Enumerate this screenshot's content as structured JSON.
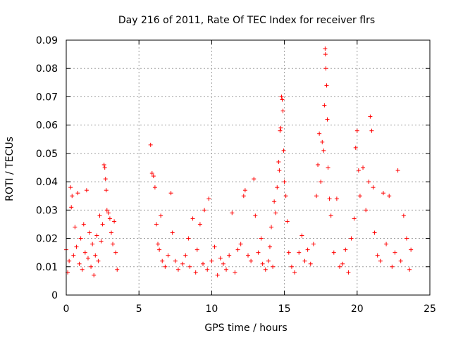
{
  "chart_data": {
    "type": "scatter",
    "title": "Day 216 of 2011, Rate Of TEC Index for receiver flrs",
    "xlabel": "GPS time / hours",
    "ylabel": "ROTI / TECUs",
    "xlim": [
      0,
      25
    ],
    "ylim": [
      0,
      0.09
    ],
    "xticks": [
      0,
      5,
      10,
      15,
      20,
      25
    ],
    "yticks": [
      0,
      0.01,
      0.02,
      0.03,
      0.04,
      0.05,
      0.06,
      0.07,
      0.08,
      0.09
    ],
    "xtick_labels": [
      "0",
      "5",
      "10",
      "15",
      "20",
      "25"
    ],
    "ytick_labels": [
      "0",
      "0.01",
      "0.02",
      "0.03",
      "0.04",
      "0.05",
      "0.06",
      "0.07",
      "0.08",
      "0.09"
    ],
    "grid": true,
    "marker": "plus",
    "color": "#ff0000",
    "series": [
      {
        "name": "ROTI",
        "points": [
          [
            0.0,
            0.016
          ],
          [
            0.1,
            0.008
          ],
          [
            0.2,
            0.012
          ],
          [
            0.3,
            0.038
          ],
          [
            0.35,
            0.031
          ],
          [
            0.4,
            0.035
          ],
          [
            0.5,
            0.014
          ],
          [
            0.6,
            0.024
          ],
          [
            0.7,
            0.017
          ],
          [
            0.8,
            0.036
          ],
          [
            0.9,
            0.011
          ],
          [
            1.0,
            0.02
          ],
          [
            1.1,
            0.009
          ],
          [
            1.2,
            0.025
          ],
          [
            1.3,
            0.015
          ],
          [
            1.4,
            0.037
          ],
          [
            1.5,
            0.013
          ],
          [
            1.6,
            0.022
          ],
          [
            1.7,
            0.01
          ],
          [
            1.8,
            0.018
          ],
          [
            1.9,
            0.007
          ],
          [
            2.0,
            0.014
          ],
          [
            2.1,
            0.021
          ],
          [
            2.2,
            0.012
          ],
          [
            2.3,
            0.028
          ],
          [
            2.4,
            0.019
          ],
          [
            2.5,
            0.025
          ],
          [
            2.6,
            0.046
          ],
          [
            2.65,
            0.045
          ],
          [
            2.7,
            0.041
          ],
          [
            2.75,
            0.037
          ],
          [
            2.8,
            0.03
          ],
          [
            2.9,
            0.029
          ],
          [
            3.0,
            0.027
          ],
          [
            3.1,
            0.022
          ],
          [
            3.2,
            0.018
          ],
          [
            3.3,
            0.026
          ],
          [
            3.4,
            0.015
          ],
          [
            3.5,
            0.009
          ],
          [
            5.8,
            0.053
          ],
          [
            5.9,
            0.043
          ],
          [
            6.0,
            0.042
          ],
          [
            6.1,
            0.038
          ],
          [
            6.2,
            0.025
          ],
          [
            6.3,
            0.018
          ],
          [
            6.4,
            0.016
          ],
          [
            6.5,
            0.028
          ],
          [
            6.6,
            0.012
          ],
          [
            6.8,
            0.01
          ],
          [
            7.0,
            0.014
          ],
          [
            7.2,
            0.036
          ],
          [
            7.3,
            0.022
          ],
          [
            7.5,
            0.012
          ],
          [
            7.7,
            0.009
          ],
          [
            8.0,
            0.011
          ],
          [
            8.2,
            0.014
          ],
          [
            8.4,
            0.02
          ],
          [
            8.5,
            0.01
          ],
          [
            8.7,
            0.027
          ],
          [
            8.9,
            0.008
          ],
          [
            9.0,
            0.016
          ],
          [
            9.2,
            0.025
          ],
          [
            9.4,
            0.011
          ],
          [
            9.5,
            0.03
          ],
          [
            9.7,
            0.009
          ],
          [
            9.8,
            0.034
          ],
          [
            10.0,
            0.012
          ],
          [
            10.2,
            0.017
          ],
          [
            10.4,
            0.007
          ],
          [
            10.6,
            0.013
          ],
          [
            10.8,
            0.011
          ],
          [
            11.0,
            0.009
          ],
          [
            11.2,
            0.014
          ],
          [
            11.4,
            0.029
          ],
          [
            11.6,
            0.008
          ],
          [
            11.8,
            0.016
          ],
          [
            12.0,
            0.018
          ],
          [
            12.2,
            0.035
          ],
          [
            12.3,
            0.037
          ],
          [
            12.5,
            0.014
          ],
          [
            12.7,
            0.012
          ],
          [
            12.9,
            0.041
          ],
          [
            13.0,
            0.028
          ],
          [
            13.2,
            0.015
          ],
          [
            13.4,
            0.02
          ],
          [
            13.5,
            0.011
          ],
          [
            13.7,
            0.009
          ],
          [
            13.9,
            0.012
          ],
          [
            14.0,
            0.017
          ],
          [
            14.1,
            0.024
          ],
          [
            14.2,
            0.01
          ],
          [
            14.3,
            0.033
          ],
          [
            14.4,
            0.029
          ],
          [
            14.5,
            0.038
          ],
          [
            14.6,
            0.047
          ],
          [
            14.65,
            0.044
          ],
          [
            14.7,
            0.058
          ],
          [
            14.75,
            0.059
          ],
          [
            14.8,
            0.07
          ],
          [
            14.85,
            0.069
          ],
          [
            14.9,
            0.065
          ],
          [
            14.95,
            0.051
          ],
          [
            15.0,
            0.04
          ],
          [
            15.1,
            0.035
          ],
          [
            15.2,
            0.026
          ],
          [
            15.3,
            0.015
          ],
          [
            15.5,
            0.01
          ],
          [
            15.7,
            0.008
          ],
          [
            16.0,
            0.015
          ],
          [
            16.2,
            0.021
          ],
          [
            16.4,
            0.012
          ],
          [
            16.6,
            0.016
          ],
          [
            16.8,
            0.011
          ],
          [
            17.0,
            0.018
          ],
          [
            17.2,
            0.035
          ],
          [
            17.3,
            0.046
          ],
          [
            17.4,
            0.057
          ],
          [
            17.5,
            0.04
          ],
          [
            17.6,
            0.054
          ],
          [
            17.7,
            0.051
          ],
          [
            17.75,
            0.067
          ],
          [
            17.8,
            0.087
          ],
          [
            17.82,
            0.085
          ],
          [
            17.85,
            0.08
          ],
          [
            17.9,
            0.074
          ],
          [
            17.95,
            0.062
          ],
          [
            18.0,
            0.045
          ],
          [
            18.1,
            0.034
          ],
          [
            18.2,
            0.028
          ],
          [
            18.4,
            0.015
          ],
          [
            18.6,
            0.034
          ],
          [
            18.8,
            0.01
          ],
          [
            19.0,
            0.011
          ],
          [
            19.2,
            0.016
          ],
          [
            19.4,
            0.008
          ],
          [
            19.6,
            0.02
          ],
          [
            19.8,
            0.027
          ],
          [
            19.9,
            0.052
          ],
          [
            20.0,
            0.058
          ],
          [
            20.1,
            0.044
          ],
          [
            20.2,
            0.035
          ],
          [
            20.4,
            0.045
          ],
          [
            20.6,
            0.03
          ],
          [
            20.8,
            0.04
          ],
          [
            20.9,
            0.063
          ],
          [
            21.0,
            0.058
          ],
          [
            21.1,
            0.038
          ],
          [
            21.2,
            0.022
          ],
          [
            21.4,
            0.014
          ],
          [
            21.6,
            0.012
          ],
          [
            21.8,
            0.036
          ],
          [
            22.0,
            0.018
          ],
          [
            22.2,
            0.035
          ],
          [
            22.4,
            0.01
          ],
          [
            22.6,
            0.015
          ],
          [
            22.8,
            0.044
          ],
          [
            23.0,
            0.012
          ],
          [
            23.2,
            0.028
          ],
          [
            23.4,
            0.02
          ],
          [
            23.6,
            0.009
          ],
          [
            23.7,
            0.016
          ]
        ]
      }
    ]
  }
}
